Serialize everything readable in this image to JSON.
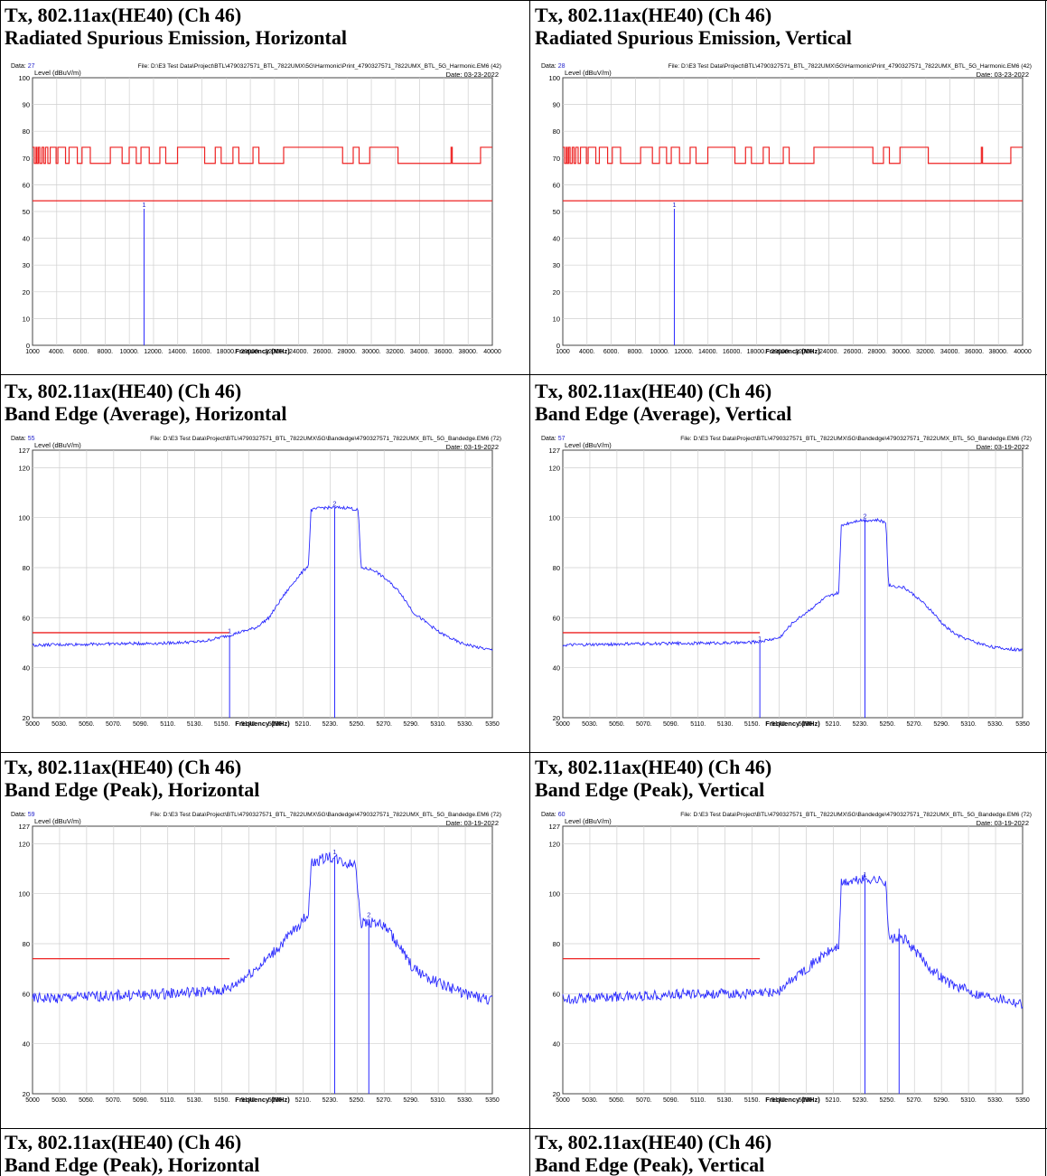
{
  "captions": [
    {
      "l1": "Tx, 802.11ax(HE40) (Ch 46)",
      "l2": "Radiated Spurious Emission, Horizontal"
    },
    {
      "l1": "Tx, 802.11ax(HE40) (Ch 46)",
      "l2": "Radiated Spurious Emission, Vertical"
    },
    {
      "l1": "Tx, 802.11ax(HE40) (Ch 46)",
      "l2": "Band Edge (Average), Horizontal"
    },
    {
      "l1": "Tx, 802.11ax(HE40) (Ch 46)",
      "l2": "Band Edge (Average), Vertical"
    },
    {
      "l1": "Tx, 802.11ax(HE40) (Ch 46)",
      "l2": "Band Edge (Peak), Horizontal"
    },
    {
      "l1": "Tx, 802.11ax(HE40) (Ch 46)",
      "l2": "Band Edge (Peak), Vertical"
    },
    {
      "l1": "Tx, 802.11ax(HE40) (Ch 46)",
      "l2": "Band Edge (Peak), Horizontal"
    },
    {
      "l1": "Tx, 802.11ax(HE40) (Ch 46)",
      "l2": "Band Edge (Peak), Vertical"
    }
  ],
  "colors": {
    "trace": "#2a2aff",
    "limit": "#ee2222",
    "grid": "#cfcfcf",
    "label": "#2222cc"
  },
  "chart_data": [
    {
      "type": "line",
      "data_label": "Data:",
      "data_no": "27",
      "file": "File: D:\\E3 Test Data\\Project\\BTL\\4790327571_BTL_7822UMX\\5G\\Harmonic\\Print_4790327571_7822UMX_BTL_5G_Harmonic.EM6 (42)",
      "date": "Date: 03-23-2022",
      "ylabel": "Level (dBuV/m)",
      "xlabel": "Frequency (MHz)",
      "xlim": [
        1000,
        40000
      ],
      "ylim": [
        0,
        100
      ],
      "yticks": [
        "0",
        "10",
        "20",
        "30",
        "40",
        "50",
        "60",
        "70",
        "80",
        "90",
        "100"
      ],
      "xticks": [
        "1000",
        "4000.",
        "6000.",
        "8000.",
        "10000.",
        "12000.",
        "14000.",
        "16000.",
        "18000.",
        "20000.",
        "22000.",
        "24000.",
        "26000.",
        "28000.",
        "30000.",
        "32000.",
        "34000.",
        "36000.",
        "38000.",
        "40000"
      ],
      "limit_avg": 54,
      "limit_peak_steps": [
        [
          1000,
          74
        ],
        [
          1150,
          68
        ],
        [
          1300,
          74
        ],
        [
          1380,
          68
        ],
        [
          1500,
          74
        ],
        [
          1620,
          68
        ],
        [
          1800,
          74
        ],
        [
          1950,
          68
        ],
        [
          2100,
          74
        ],
        [
          2300,
          68
        ],
        [
          2500,
          74
        ],
        [
          2850,
          74
        ],
        [
          3000,
          68
        ],
        [
          3150,
          74
        ],
        [
          3600,
          74
        ],
        [
          3800,
          68
        ],
        [
          4100,
          74
        ],
        [
          4600,
          74
        ],
        [
          4800,
          68
        ],
        [
          5200,
          74
        ],
        [
          5600,
          74
        ],
        [
          5900,
          68
        ],
        [
          7600,
          74
        ],
        [
          8400,
          74
        ],
        [
          8600,
          68
        ],
        [
          9200,
          74
        ],
        [
          9600,
          74
        ],
        [
          9800,
          68
        ],
        [
          10200,
          74
        ],
        [
          10700,
          74
        ],
        [
          10900,
          68
        ],
        [
          11800,
          74
        ],
        [
          12100,
          74
        ],
        [
          12300,
          68
        ],
        [
          13300,
          74
        ],
        [
          15400,
          74
        ],
        [
          15600,
          68
        ],
        [
          16500,
          74
        ],
        [
          16800,
          74
        ],
        [
          17000,
          68
        ],
        [
          18000,
          74
        ],
        [
          18300,
          74
        ],
        [
          18500,
          68
        ],
        [
          19700,
          74
        ],
        [
          20000,
          74
        ],
        [
          20200,
          68
        ],
        [
          22300,
          74
        ],
        [
          27100,
          74
        ],
        [
          27300,
          68
        ],
        [
          28200,
          74
        ],
        [
          28500,
          74
        ],
        [
          28700,
          68
        ],
        [
          29600,
          74
        ],
        [
          31800,
          74
        ],
        [
          32000,
          68
        ],
        [
          36400,
          68
        ],
        [
          36500,
          74
        ],
        [
          36600,
          68
        ],
        [
          38900,
          68
        ],
        [
          39000,
          74
        ],
        [
          40000,
          74
        ]
      ],
      "markers": [
        {
          "label": "1",
          "x": 10460,
          "y": 51
        }
      ]
    },
    {
      "type": "line",
      "data_label": "Data:",
      "data_no": "28",
      "file": "File: D:\\E3 Test Data\\Project\\BTL\\4790327571_BTL_7822UMX\\5G\\Harmonic\\Print_4790327571_7822UMX_BTL_5G_Harmonic.EM6 (42)",
      "date": "Date: 03-23-2022",
      "ylabel": "Level (dBuV/m)",
      "xlabel": "Frequency (MHz)",
      "xlim": [
        1000,
        40000
      ],
      "ylim": [
        0,
        100
      ],
      "yticks": [
        "0",
        "10",
        "20",
        "30",
        "40",
        "50",
        "60",
        "70",
        "80",
        "90",
        "100"
      ],
      "xticks": [
        "1000",
        "4000.",
        "6000.",
        "8000.",
        "10000.",
        "12000.",
        "14000.",
        "16000.",
        "18000.",
        "20000.",
        "22000.",
        "24000.",
        "26000.",
        "28000.",
        "30000.",
        "32000.",
        "34000.",
        "36000.",
        "38000.",
        "40000"
      ],
      "limit_avg": 54,
      "limit_peak_steps": [
        [
          1000,
          74
        ],
        [
          1150,
          68
        ],
        [
          1300,
          74
        ],
        [
          1380,
          68
        ],
        [
          1500,
          74
        ],
        [
          1620,
          68
        ],
        [
          1800,
          74
        ],
        [
          1950,
          68
        ],
        [
          2100,
          74
        ],
        [
          2300,
          68
        ],
        [
          2500,
          74
        ],
        [
          2850,
          74
        ],
        [
          3000,
          68
        ],
        [
          3150,
          74
        ],
        [
          3600,
          74
        ],
        [
          3800,
          68
        ],
        [
          4100,
          74
        ],
        [
          4600,
          74
        ],
        [
          4800,
          68
        ],
        [
          5200,
          74
        ],
        [
          5600,
          74
        ],
        [
          5900,
          68
        ],
        [
          7600,
          74
        ],
        [
          8400,
          74
        ],
        [
          8600,
          68
        ],
        [
          9200,
          74
        ],
        [
          9600,
          74
        ],
        [
          9800,
          68
        ],
        [
          10200,
          74
        ],
        [
          10700,
          74
        ],
        [
          10900,
          68
        ],
        [
          11800,
          74
        ],
        [
          12100,
          74
        ],
        [
          12300,
          68
        ],
        [
          13300,
          74
        ],
        [
          15400,
          74
        ],
        [
          15600,
          68
        ],
        [
          16500,
          74
        ],
        [
          16800,
          74
        ],
        [
          17000,
          68
        ],
        [
          18000,
          74
        ],
        [
          18300,
          74
        ],
        [
          18500,
          68
        ],
        [
          19700,
          74
        ],
        [
          20000,
          74
        ],
        [
          20200,
          68
        ],
        [
          22300,
          74
        ],
        [
          27100,
          74
        ],
        [
          27300,
          68
        ],
        [
          28200,
          74
        ],
        [
          28500,
          74
        ],
        [
          28700,
          68
        ],
        [
          29600,
          74
        ],
        [
          31800,
          74
        ],
        [
          32000,
          68
        ],
        [
          36400,
          68
        ],
        [
          36500,
          74
        ],
        [
          36600,
          68
        ],
        [
          38900,
          68
        ],
        [
          39000,
          74
        ],
        [
          40000,
          74
        ]
      ],
      "markers": [
        {
          "label": "1",
          "x": 10460,
          "y": 51
        }
      ]
    },
    {
      "type": "line",
      "data_label": "Data:",
      "data_no": "55",
      "file": "File: D:\\E3 Test Data\\Project\\BTL\\4790327571_BTL_7822UMX\\5G\\Bandedge\\4790327571_7822UMX_BTL_5G_Bandedge.EM6 (72)",
      "date": "Date: 03-19-2022",
      "ylabel": "Level (dBuV/m)",
      "xlabel": "Frequency (MHz)",
      "xlim": [
        5000,
        5350
      ],
      "ylim": [
        20,
        127
      ],
      "yticks": [
        "20",
        "40",
        "60",
        "80",
        "100",
        "120",
        "127"
      ],
      "xticks": [
        "5000",
        "5030.",
        "5050.",
        "5070.",
        "5090.",
        "5110.",
        "5130.",
        "5150.",
        "5170.",
        "5190.",
        "5210.",
        "5230.",
        "5250.",
        "5270.",
        "5290.",
        "5310.",
        "5330.",
        "5350"
      ],
      "limit": {
        "y": 54,
        "x_end": 5150
      },
      "trace": [
        [
          5000,
          49
        ],
        [
          5050,
          49.5
        ],
        [
          5100,
          49.8
        ],
        [
          5130,
          50.5
        ],
        [
          5150,
          53
        ],
        [
          5170,
          56
        ],
        [
          5180,
          60
        ],
        [
          5190,
          68
        ],
        [
          5200,
          75
        ],
        [
          5210,
          81
        ],
        [
          5212,
          103
        ],
        [
          5220,
          104
        ],
        [
          5240,
          104
        ],
        [
          5248,
          103
        ],
        [
          5250,
          80
        ],
        [
          5260,
          79
        ],
        [
          5270,
          75
        ],
        [
          5280,
          70
        ],
        [
          5290,
          62
        ],
        [
          5300,
          58
        ],
        [
          5310,
          54
        ],
        [
          5325,
          50
        ],
        [
          5340,
          48
        ],
        [
          5350,
          47
        ]
      ],
      "noise": 0.6,
      "markers": [
        {
          "label": "1",
          "x": 5150,
          "y": 53
        },
        {
          "label": "2",
          "x": 5230,
          "y": 104
        }
      ]
    },
    {
      "type": "line",
      "data_label": "Data:",
      "data_no": "57",
      "file": "File: D:\\E3 Test Data\\Project\\BTL\\4790327571_BTL_7822UMX\\5G\\Bandedge\\4790327571_7822UMX_BTL_5G_Bandedge.EM6 (72)",
      "date": "Date: 03-19-2022",
      "ylabel": "Level (dBuV/m)",
      "xlabel": "Frequency (MHz)",
      "xlim": [
        5000,
        5350
      ],
      "ylim": [
        20,
        127
      ],
      "yticks": [
        "20",
        "40",
        "60",
        "80",
        "100",
        "120",
        "127"
      ],
      "xticks": [
        "5000",
        "5030.",
        "5050.",
        "5070.",
        "5090.",
        "5110.",
        "5130.",
        "5150.",
        "5170.",
        "5190.",
        "5210.",
        "5230.",
        "5250.",
        "5270.",
        "5290.",
        "5310.",
        "5330.",
        "5350"
      ],
      "limit": {
        "y": 54,
        "x_end": 5150
      },
      "trace": [
        [
          5000,
          49
        ],
        [
          5050,
          49.5
        ],
        [
          5100,
          49.8
        ],
        [
          5140,
          50
        ],
        [
          5150,
          50.5
        ],
        [
          5165,
          52
        ],
        [
          5175,
          58
        ],
        [
          5190,
          64
        ],
        [
          5200,
          68
        ],
        [
          5210,
          70
        ],
        [
          5212,
          97
        ],
        [
          5225,
          99
        ],
        [
          5240,
          99
        ],
        [
          5246,
          98
        ],
        [
          5248,
          73
        ],
        [
          5260,
          72
        ],
        [
          5270,
          68
        ],
        [
          5280,
          63
        ],
        [
          5290,
          57
        ],
        [
          5300,
          53
        ],
        [
          5315,
          50
        ],
        [
          5330,
          48
        ],
        [
          5350,
          47
        ]
      ],
      "noise": 0.6,
      "markers": [
        {
          "label": "1",
          "x": 5150,
          "y": 50
        },
        {
          "label": "2",
          "x": 5230,
          "y": 99
        }
      ]
    },
    {
      "type": "line",
      "data_label": "Data:",
      "data_no": "59",
      "file": "File: D:\\E3 Test Data\\Project\\BTL\\4790327571_BTL_7822UMX\\5G\\Bandedge\\4790327571_7822UMX_BTL_5G_Bandedge.EM6 (72)",
      "date": "Date: 03-19-2022",
      "ylabel": "Level (dBuV/m)",
      "xlabel": "Frequency (MHz)",
      "xlim": [
        5000,
        5350
      ],
      "ylim": [
        20,
        127
      ],
      "yticks": [
        "20",
        "40",
        "60",
        "80",
        "100",
        "120",
        "127"
      ],
      "xticks": [
        "5000",
        "5030.",
        "5050.",
        "5070.",
        "5090.",
        "5110.",
        "5130.",
        "5150.",
        "5170.",
        "5190.",
        "5210.",
        "5230.",
        "5250.",
        "5270.",
        "5290.",
        "5310.",
        "5330.",
        "5350"
      ],
      "limit": {
        "y": 74,
        "x_end": 5150
      },
      "trace": [
        [
          5000,
          58
        ],
        [
          5050,
          59
        ],
        [
          5100,
          60
        ],
        [
          5140,
          61
        ],
        [
          5150,
          62
        ],
        [
          5160,
          66
        ],
        [
          5175,
          72
        ],
        [
          5190,
          80
        ],
        [
          5200,
          86
        ],
        [
          5210,
          92
        ],
        [
          5212,
          112
        ],
        [
          5225,
          115
        ],
        [
          5240,
          112
        ],
        [
          5246,
          112
        ],
        [
          5250,
          88
        ],
        [
          5260,
          89
        ],
        [
          5270,
          86
        ],
        [
          5280,
          78
        ],
        [
          5290,
          70
        ],
        [
          5310,
          64
        ],
        [
          5330,
          60
        ],
        [
          5350,
          57
        ]
      ],
      "noise": 2.2,
      "markers": [
        {
          "label": "1",
          "x": 5230,
          "y": 115
        },
        {
          "label": "2",
          "x": 5256,
          "y": 90
        }
      ]
    },
    {
      "type": "line",
      "data_label": "Data:",
      "data_no": "60",
      "file": "File: D:\\E3 Test Data\\Project\\BTL\\4790327571_BTL_7822UMX\\5G\\Bandedge\\4790327571_7822UMX_BTL_5G_Bandedge.EM6 (72)",
      "date": "Date: 03-19-2022",
      "ylabel": "Level (dBuV/m)",
      "xlabel": "Frequency (MHz)",
      "xlim": [
        5000,
        5350
      ],
      "ylim": [
        20,
        127
      ],
      "yticks": [
        "20",
        "40",
        "60",
        "80",
        "100",
        "120",
        "127"
      ],
      "xticks": [
        "5000",
        "5030.",
        "5050.",
        "5070.",
        "5090.",
        "5110.",
        "5130.",
        "5150.",
        "5170.",
        "5190.",
        "5210.",
        "5230.",
        "5250.",
        "5270.",
        "5290.",
        "5310.",
        "5330.",
        "5350"
      ],
      "limit": {
        "y": 74,
        "x_end": 5150
      },
      "trace": [
        [
          5000,
          58
        ],
        [
          5050,
          59
        ],
        [
          5100,
          60
        ],
        [
          5150,
          60
        ],
        [
          5165,
          61
        ],
        [
          5175,
          66
        ],
        [
          5190,
          72
        ],
        [
          5200,
          76
        ],
        [
          5210,
          79
        ],
        [
          5212,
          104
        ],
        [
          5230,
          106
        ],
        [
          5246,
          105
        ],
        [
          5248,
          82
        ],
        [
          5260,
          82
        ],
        [
          5270,
          76
        ],
        [
          5280,
          70
        ],
        [
          5295,
          64
        ],
        [
          5315,
          60
        ],
        [
          5335,
          58
        ],
        [
          5350,
          56
        ]
      ],
      "noise": 2.0,
      "markers": [
        {
          "label": "1",
          "x": 5230,
          "y": 106
        },
        {
          "label": "",
          "x": 5256,
          "y": 86
        }
      ]
    }
  ]
}
